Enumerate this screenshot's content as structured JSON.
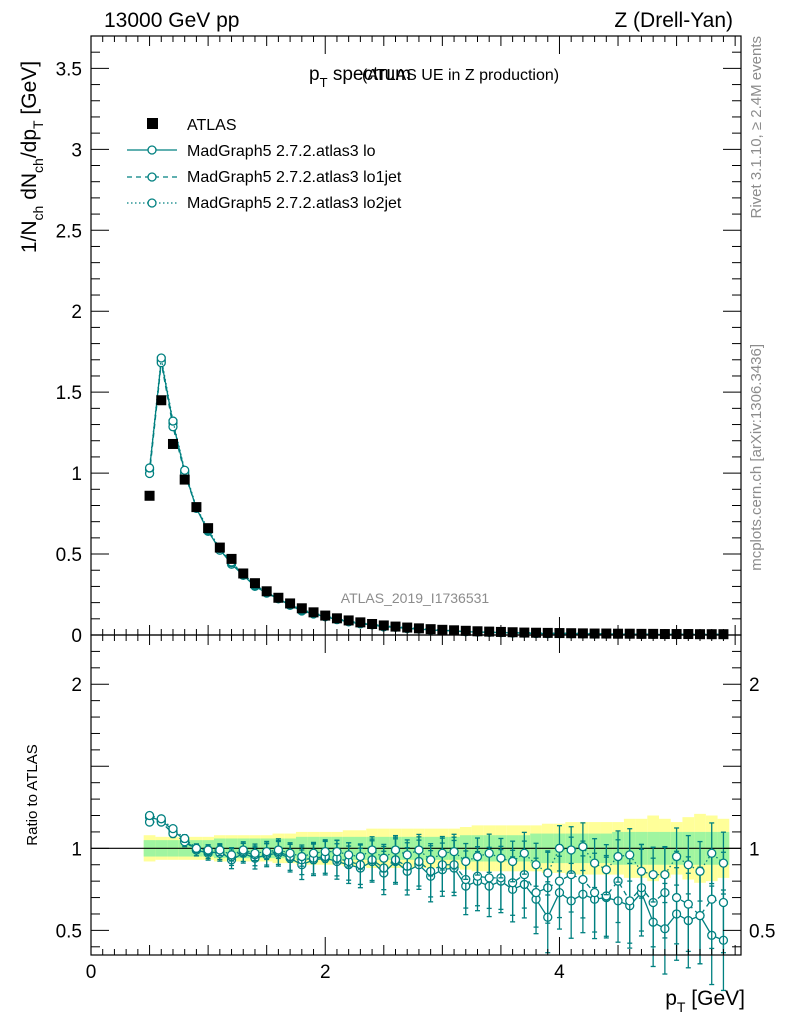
{
  "header": {
    "left": "13000 GeV pp",
    "right": "Z (Drell-Yan)"
  },
  "side_labels": {
    "rivet": "Rivet 3.1.10, ≥ 2.4M events",
    "mcplots": "mcplots.cern.ch [arXiv:1306.3436]"
  },
  "watermark": "ATLAS_2019_I1736531",
  "colors": {
    "mc": "#008080",
    "data": "#000000",
    "band_inner": "#a0f5a0",
    "band_outer": "#ffff99"
  },
  "chart_data": [
    {
      "type": "scatter",
      "title_main": "p",
      "title_sub": "T",
      "title_rest": " spectrum",
      "title_note": "(ATLAS UE in Z production)",
      "ylabel": {
        "a": "1/N",
        "b": "ch",
        "c": " dN",
        "d": "ch",
        "e": "/dp",
        "f": "T",
        "g": " [GeV]"
      },
      "xlim": [
        0,
        5.55
      ],
      "ylim": [
        0,
        3.7
      ],
      "xticks": [
        "0",
        "2",
        "4"
      ],
      "yticks": [
        "0",
        "0.5",
        "1",
        "1.5",
        "2",
        "2.5",
        "3",
        "3.5"
      ],
      "legend": [
        {
          "label": "ATLAS",
          "style": "square"
        },
        {
          "label": "MadGraph5 2.7.2.atlas3 lo",
          "style": "solid"
        },
        {
          "label": "MadGraph5 2.7.2.atlas3 lo1jet",
          "style": "dashed"
        },
        {
          "label": "MadGraph5 2.7.2.atlas3 lo2jet",
          "style": "dotted"
        }
      ],
      "x": [
        0.5,
        0.6,
        0.7,
        0.8,
        0.9,
        1.0,
        1.1,
        1.2,
        1.3,
        1.4,
        1.5,
        1.6,
        1.7,
        1.8,
        1.9,
        2.0,
        2.1,
        2.2,
        2.3,
        2.4,
        2.5,
        2.6,
        2.7,
        2.8,
        2.9,
        3.0,
        3.1,
        3.2,
        3.3,
        3.4,
        3.5,
        3.6,
        3.7,
        3.8,
        3.9,
        4.0,
        4.1,
        4.2,
        4.3,
        4.4,
        4.5,
        4.6,
        4.7,
        4.8,
        4.9,
        5.0,
        5.1,
        5.2,
        5.3,
        5.4
      ],
      "atlas": [
        0.86,
        1.45,
        1.18,
        0.96,
        0.79,
        0.66,
        0.54,
        0.47,
        0.38,
        0.32,
        0.27,
        0.23,
        0.195,
        0.165,
        0.14,
        0.12,
        0.103,
        0.09,
        0.078,
        0.068,
        0.059,
        0.052,
        0.046,
        0.041,
        0.036,
        0.032,
        0.029,
        0.026,
        0.023,
        0.021,
        0.019,
        0.017,
        0.015,
        0.014,
        0.013,
        0.012,
        0.011,
        0.01,
        0.009,
        0.009,
        0.008,
        0.008,
        0.007,
        0.007,
        0.006,
        0.006,
        0.006,
        0.005,
        0.005,
        0.005
      ],
      "series": [
        {
          "name": "MadGraph5 2.7.2.atlas3 lo",
          "style": "solid",
          "ratio": [
            1.19,
            1.17,
            1.11,
            1.05,
            0.99,
            0.97,
            0.98,
            0.93,
            0.97,
            0.94,
            0.96,
            0.97,
            0.94,
            0.9,
            0.93,
            0.94,
            0.92,
            0.9,
            0.88,
            0.92,
            0.85,
            0.92,
            0.86,
            0.9,
            0.83,
            0.87,
            0.88,
            0.77,
            0.8,
            0.77,
            0.8,
            0.75,
            0.78,
            0.69,
            0.58,
            0.73,
            0.68,
            0.72,
            0.69,
            0.7,
            0.68,
            0.65,
            0.73,
            0.55,
            0.51,
            0.6,
            0.56,
            0.59,
            0.47,
            0.44
          ]
        },
        {
          "name": "MadGraph5 2.7.2.atlas3 lo1jet",
          "style": "dashed",
          "ratio": [
            1.16,
            1.16,
            1.09,
            1.04,
            0.99,
            0.98,
            0.97,
            0.95,
            0.98,
            0.96,
            0.97,
            0.98,
            0.95,
            0.93,
            0.94,
            0.95,
            0.94,
            0.92,
            0.9,
            0.93,
            0.88,
            0.93,
            0.89,
            0.92,
            0.86,
            0.9,
            0.9,
            0.81,
            0.83,
            0.82,
            0.82,
            0.79,
            0.84,
            0.73,
            0.76,
            0.8,
            0.84,
            0.81,
            0.73,
            0.71,
            0.8,
            0.68,
            0.76,
            0.67,
            0.73,
            0.7,
            0.66,
            0.59,
            0.69,
            0.67
          ]
        },
        {
          "name": "MadGraph5 2.7.2.atlas3 lo2jet",
          "style": "dotted",
          "ratio": [
            1.2,
            1.18,
            1.12,
            1.06,
            1.0,
            0.99,
            0.99,
            0.96,
            0.99,
            0.97,
            0.98,
            0.99,
            0.97,
            0.95,
            0.97,
            0.98,
            0.98,
            0.96,
            0.95,
            0.99,
            0.94,
            0.99,
            0.96,
            0.99,
            0.93,
            0.97,
            0.98,
            0.92,
            0.95,
            0.97,
            0.94,
            0.92,
            0.97,
            0.9,
            0.85,
            1.0,
            0.99,
            1.01,
            0.91,
            0.87,
            0.95,
            0.96,
            0.86,
            0.84,
            0.84,
            0.95,
            0.9,
            0.86,
            0.97,
            0.91
          ]
        }
      ]
    },
    {
      "type": "scatter",
      "ylabel": "Ratio to ATLAS",
      "xlabel_main": "p",
      "xlabel_sub": "T",
      "xlabel_rest": " [GeV]",
      "ylim": [
        0.35,
        2.3
      ],
      "yticks": [
        "0.5",
        "1",
        "2"
      ],
      "band_inner": [
        0.05,
        0.05,
        0.05,
        0.05,
        0.05,
        0.05,
        0.06,
        0.06,
        0.06,
        0.06,
        0.06,
        0.06,
        0.06,
        0.07,
        0.07,
        0.07,
        0.07,
        0.07,
        0.07,
        0.07,
        0.07,
        0.07,
        0.07,
        0.07,
        0.07,
        0.07,
        0.07,
        0.08,
        0.08,
        0.08,
        0.08,
        0.08,
        0.08,
        0.09,
        0.09,
        0.09,
        0.09,
        0.09,
        0.09,
        0.09,
        0.1,
        0.1,
        0.1,
        0.1,
        0.1,
        0.1,
        0.1,
        0.1,
        0.1,
        0.1
      ],
      "band_outer": [
        0.08,
        0.07,
        0.07,
        0.07,
        0.07,
        0.07,
        0.08,
        0.08,
        0.08,
        0.08,
        0.08,
        0.09,
        0.09,
        0.1,
        0.1,
        0.1,
        0.1,
        0.11,
        0.11,
        0.12,
        0.12,
        0.12,
        0.12,
        0.12,
        0.12,
        0.12,
        0.12,
        0.13,
        0.14,
        0.14,
        0.14,
        0.14,
        0.14,
        0.14,
        0.15,
        0.15,
        0.16,
        0.16,
        0.16,
        0.16,
        0.16,
        0.18,
        0.18,
        0.2,
        0.18,
        0.16,
        0.19,
        0.21,
        0.2,
        0.18
      ]
    }
  ]
}
